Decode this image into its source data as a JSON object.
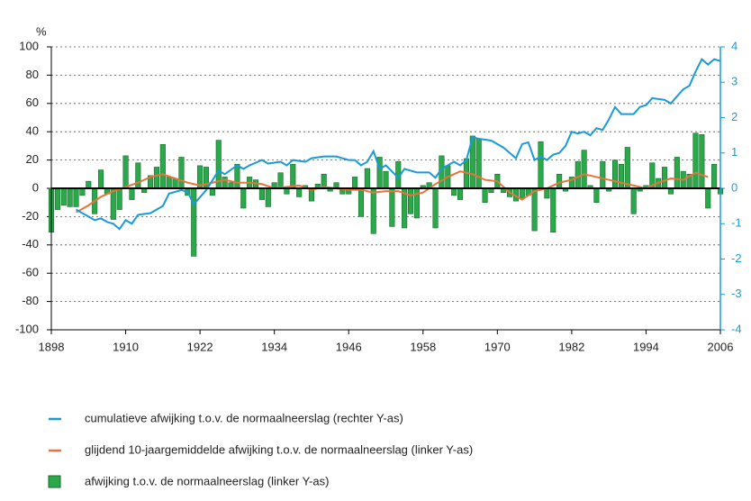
{
  "chart_data": {
    "type": "bar",
    "y_label": "%",
    "xlim": [
      1898,
      2006
    ],
    "xticks": [
      1898,
      1910,
      1922,
      1934,
      1946,
      1958,
      1970,
      1982,
      1994,
      2006
    ],
    "ylim": [
      -100,
      100
    ],
    "yticks": [
      100,
      80,
      60,
      40,
      20,
      0,
      -20,
      -40,
      -60,
      -80,
      -100
    ],
    "y2lim": [
      -4,
      4
    ],
    "y2ticks": [
      4,
      3,
      2,
      1,
      0,
      -1,
      -2,
      -3,
      -4
    ],
    "grid": true,
    "axis_color_y2": "#1a9bd7",
    "x": [
      1898,
      1899,
      1900,
      1901,
      1902,
      1903,
      1904,
      1905,
      1906,
      1907,
      1908,
      1909,
      1910,
      1911,
      1912,
      1913,
      1914,
      1915,
      1916,
      1917,
      1918,
      1919,
      1920,
      1921,
      1922,
      1923,
      1924,
      1925,
      1926,
      1927,
      1928,
      1929,
      1930,
      1931,
      1932,
      1933,
      1934,
      1935,
      1936,
      1937,
      1938,
      1939,
      1940,
      1941,
      1942,
      1943,
      1944,
      1945,
      1946,
      1947,
      1948,
      1949,
      1950,
      1951,
      1952,
      1953,
      1954,
      1955,
      1956,
      1957,
      1958,
      1959,
      1960,
      1961,
      1962,
      1963,
      1964,
      1965,
      1966,
      1967,
      1968,
      1969,
      1970,
      1971,
      1972,
      1973,
      1974,
      1975,
      1976,
      1977,
      1978,
      1979,
      1980,
      1981,
      1982,
      1983,
      1984,
      1985,
      1986,
      1987,
      1988,
      1989,
      1990,
      1991,
      1992,
      1993,
      1994,
      1995,
      1996,
      1997,
      1998,
      1999,
      2000,
      2001,
      2002,
      2003,
      2004,
      2005,
      2006
    ],
    "series": [
      {
        "name": "cumulatieve afwijking t.o.v. de normaalneerslag (rechter Y-as)",
        "type": "line",
        "axis": "y2",
        "color": "#1a9bd7",
        "x": [
          1902,
          1903,
          1904,
          1905,
          1906,
          1907,
          1908,
          1909,
          1910,
          1911,
          1912,
          1914,
          1916,
          1917,
          1919,
          1920,
          1921,
          1922,
          1923,
          1925,
          1926,
          1928,
          1929,
          1930,
          1932,
          1933,
          1935,
          1936,
          1937,
          1939,
          1940,
          1942,
          1944,
          1946,
          1947,
          1948,
          1949,
          1950,
          1951,
          1952,
          1954,
          1955,
          1957,
          1959,
          1960,
          1961,
          1963,
          1964,
          1965,
          1966,
          1967,
          1969,
          1971,
          1973,
          1974,
          1975,
          1976,
          1977,
          1978,
          1979,
          1980,
          1981,
          1982,
          1983,
          1984,
          1985,
          1986,
          1987,
          1988,
          1989,
          1990,
          1992,
          1993,
          1994,
          1995,
          1997,
          1998,
          1999,
          2000,
          2001,
          2002,
          2003,
          2004,
          2005,
          2006
        ],
        "values": [
          -0.6,
          -0.7,
          -0.8,
          -0.9,
          -0.85,
          -0.95,
          -1.0,
          -1.15,
          -0.9,
          -1.0,
          -0.75,
          -0.7,
          -0.5,
          -0.15,
          -0.05,
          -0.1,
          -0.45,
          -0.25,
          -0.05,
          0.5,
          0.4,
          0.65,
          0.55,
          0.65,
          0.8,
          0.7,
          0.75,
          0.65,
          0.8,
          0.75,
          0.85,
          0.9,
          0.9,
          0.8,
          0.8,
          0.65,
          0.75,
          1.05,
          0.55,
          0.65,
          0.3,
          0.55,
          0.45,
          0.45,
          0.3,
          0.55,
          0.75,
          0.65,
          0.8,
          1.45,
          1.4,
          1.35,
          1.15,
          0.85,
          1.25,
          1.3,
          0.8,
          0.9,
          0.8,
          0.95,
          1.0,
          1.2,
          1.6,
          1.55,
          1.6,
          1.5,
          1.7,
          1.65,
          1.95,
          2.3,
          2.1,
          2.1,
          2.3,
          2.35,
          2.55,
          2.5,
          2.4,
          2.6,
          2.8,
          2.9,
          3.3,
          3.65,
          3.5,
          3.65,
          3.6
        ]
      },
      {
        "name": "glijdend 10-jaargemiddelde afwijking t.o.v. de normaalneerslag (linker Y-as)",
        "type": "line",
        "color": "#e8743b",
        "x": [
          1902,
          1904,
          1906,
          1908,
          1910,
          1912,
          1914,
          1916,
          1918,
          1920,
          1922,
          1924,
          1926,
          1928,
          1930,
          1932,
          1934,
          1936,
          1938,
          1940,
          1942,
          1944,
          1946,
          1948,
          1950,
          1952,
          1954,
          1956,
          1958,
          1960,
          1962,
          1964,
          1966,
          1968,
          1970,
          1972,
          1974,
          1976,
          1978,
          1980,
          1982,
          1984,
          1986,
          1988,
          1990,
          1992,
          1994,
          1996,
          1998,
          2000,
          2002,
          2004
        ],
        "values": [
          -17,
          -12,
          -6,
          -2,
          1,
          4,
          8,
          10,
          7,
          4,
          2,
          4,
          6,
          4,
          4,
          3,
          0,
          1,
          2,
          -1,
          1,
          0,
          -1,
          -1,
          -3,
          -2,
          -2,
          -5,
          -3,
          3,
          8,
          12,
          10,
          6,
          5,
          -3,
          -8,
          -2,
          0,
          4,
          6,
          10,
          8,
          6,
          4,
          2,
          0,
          4,
          7,
          6,
          11,
          8
        ]
      },
      {
        "name": "afwijking t.o.v. de normaalneerslag (linker Y-as)",
        "type": "bar",
        "color": "#2aa84a",
        "values": [
          -31,
          -15,
          -12,
          -13,
          -13,
          -5,
          5,
          -18,
          13,
          -4,
          -22,
          -15,
          23,
          -8,
          18,
          -3,
          9,
          15,
          31,
          8,
          7,
          22,
          -5,
          -48,
          16,
          15,
          -5,
          34,
          8,
          4,
          17,
          -14,
          8,
          6,
          -8,
          -13,
          4,
          11,
          -4,
          17,
          -6,
          2,
          -9,
          3,
          10,
          -2,
          4,
          -4,
          -4,
          8,
          -20,
          14,
          -32,
          22,
          12,
          -27,
          19,
          -28,
          -18,
          -21,
          2,
          4,
          -28,
          23,
          16,
          -5,
          -8,
          21,
          37,
          35,
          -10,
          -3,
          10,
          -3,
          -6,
          -9,
          -7,
          -5,
          -30,
          33,
          -7,
          -31,
          10,
          -2,
          8,
          19,
          27,
          2,
          -10,
          19,
          -2,
          20,
          17,
          29,
          -18,
          -2,
          2,
          18,
          7,
          15,
          -4,
          22,
          12,
          10,
          39,
          38,
          -14,
          17,
          -4
        ]
      }
    ]
  }
}
